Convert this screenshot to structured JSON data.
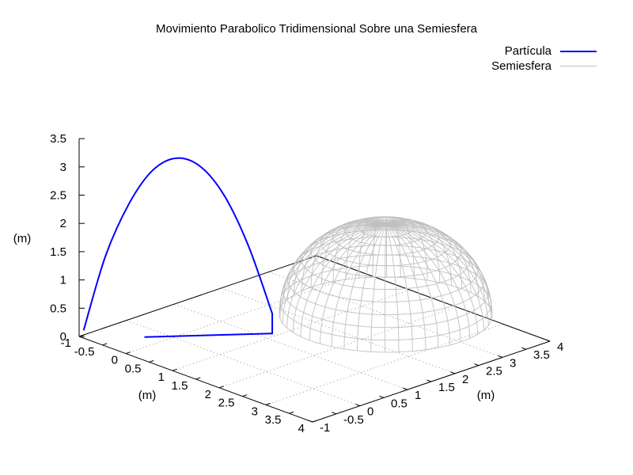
{
  "chart_data": {
    "type": "line",
    "title": "Movimiento Parabolico Tridimensional Sobre una Semiesfera",
    "xlabel": "(m)",
    "ylabel": "(m)",
    "zlabel": "(m)",
    "xlim": [
      -1,
      4
    ],
    "ylim": [
      -1,
      4
    ],
    "zlim": [
      0,
      3.5
    ],
    "x_ticks": [
      "-1",
      "-0.5",
      "0",
      "0.5",
      "1",
      "1.5",
      "2",
      "2.5",
      "3",
      "3.5",
      "4"
    ],
    "y_ticks": [
      "-1",
      "-0.5",
      "0",
      "0.5",
      "1",
      "1.5",
      "2",
      "2.5",
      "3",
      "3.5",
      "4"
    ],
    "z_ticks": [
      "0",
      "0.5",
      "1",
      "1.5",
      "2",
      "2.5",
      "3",
      "3.5"
    ],
    "grid": true,
    "legend_position": "top-right",
    "series": [
      {
        "name": "Partícula",
        "color": "#0000ff",
        "ground_path": [
          [
            -0.3,
            -0.3,
            0
          ],
          [
            0.9,
            1.2,
            0
          ]
        ],
        "vertical_drop": [
          [
            0.9,
            1.2,
            0
          ],
          [
            0.9,
            1.2,
            0.35
          ]
        ],
        "trajectory": [
          {
            "x": 0.9,
            "y": 1.2,
            "z": 0.35
          },
          {
            "x": 0.68,
            "y": 0.92,
            "z": 1.55
          },
          {
            "x": 0.45,
            "y": 0.64,
            "z": 2.45
          },
          {
            "x": 0.23,
            "y": 0.36,
            "z": 2.98
          },
          {
            "x": 0.0,
            "y": 0.08,
            "z": 3.15
          },
          {
            "x": -0.23,
            "y": -0.2,
            "z": 2.95
          },
          {
            "x": -0.45,
            "y": -0.48,
            "z": 2.38
          },
          {
            "x": -0.68,
            "y": -0.76,
            "z": 1.45
          },
          {
            "x": -0.9,
            "y": -1.0,
            "z": 0.15
          }
        ]
      },
      {
        "name": "Semiesfera",
        "color": "#c0c0c0",
        "center": [
          1.5,
          3.0,
          0
        ],
        "radius": 1.6
      }
    ]
  }
}
